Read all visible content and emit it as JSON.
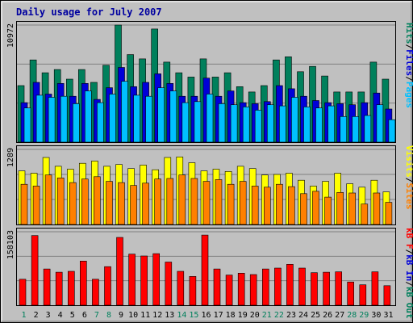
{
  "title": "Daily usage for July 2007",
  "days": [
    "1",
    "2",
    "3",
    "4",
    "5",
    "6",
    "7",
    "8",
    "9",
    "10",
    "11",
    "12",
    "13",
    "14",
    "15",
    "16",
    "17",
    "18",
    "19",
    "20",
    "21",
    "22",
    "23",
    "24",
    "25",
    "26",
    "27",
    "28",
    "29",
    "30",
    "31"
  ],
  "weekend_days": [
    1,
    7,
    8,
    14,
    15,
    21,
    22,
    28,
    29
  ],
  "colors": {
    "hits": "#00805c",
    "files": "#0000d8",
    "pages": "#00c0ff",
    "visits": "#ffff00",
    "sites": "#ff8000",
    "kbin": "#ff0000",
    "weekday_label": "#000000",
    "weekend_label": "#00805c"
  },
  "chart_data": [
    {
      "type": "bar",
      "panel": "top",
      "ymax_label": "10972",
      "ylim": [
        0,
        10972
      ],
      "legend": [
        {
          "label": "Hits",
          "color": "#00805c"
        },
        {
          "label": "/",
          "color": "#000000"
        },
        {
          "label": "Files",
          "color": "#0000d8"
        },
        {
          "label": "/",
          "color": "#000000"
        },
        {
          "label": "Pages",
          "color": "#00c0ff"
        }
      ],
      "categories": [
        "1",
        "2",
        "3",
        "4",
        "5",
        "6",
        "7",
        "8",
        "9",
        "10",
        "11",
        "12",
        "13",
        "14",
        "15",
        "16",
        "17",
        "18",
        "19",
        "20",
        "21",
        "22",
        "23",
        "24",
        "25",
        "26",
        "27",
        "28",
        "29",
        "30",
        "31"
      ],
      "series": [
        {
          "name": "Hits",
          "values": [
            5300,
            7700,
            6500,
            6800,
            5900,
            6800,
            5600,
            7200,
            10972,
            8200,
            7800,
            10600,
            7500,
            6500,
            6100,
            7800,
            6100,
            6500,
            5200,
            4700,
            5300,
            7700,
            8000,
            6600,
            7100,
            6200,
            4700,
            4700,
            4700,
            7500,
            5900
          ]
        },
        {
          "name": "Files",
          "values": [
            3700,
            5600,
            4500,
            5500,
            4300,
            5500,
            4000,
            5100,
            7000,
            5200,
            5600,
            6400,
            5500,
            4300,
            4300,
            6000,
            4300,
            4800,
            3700,
            3600,
            3800,
            5300,
            5000,
            4300,
            3900,
            3700,
            3600,
            3500,
            3700,
            4600,
            3100
          ]
        },
        {
          "name": "Pages",
          "values": [
            3200,
            4400,
            4200,
            4300,
            3600,
            4800,
            3700,
            4500,
            5700,
            4400,
            4300,
            5100,
            4800,
            3700,
            3800,
            4500,
            3600,
            3500,
            3300,
            3000,
            3500,
            3400,
            4200,
            3300,
            3200,
            3400,
            2400,
            2400,
            2500,
            3500,
            2100
          ]
        }
      ]
    },
    {
      "type": "bar",
      "panel": "middle",
      "ymax_label": "1289",
      "ylim": [
        0,
        1289
      ],
      "legend": [
        {
          "label": "Visits",
          "color": "#ffff00"
        },
        {
          "label": "/",
          "color": "#000000"
        },
        {
          "label": "Sites",
          "color": "#ff8000"
        }
      ],
      "categories": [
        "1",
        "2",
        "3",
        "4",
        "5",
        "6",
        "7",
        "8",
        "9",
        "10",
        "11",
        "12",
        "13",
        "14",
        "15",
        "16",
        "17",
        "18",
        "19",
        "20",
        "21",
        "22",
        "23",
        "24",
        "25",
        "26",
        "27",
        "28",
        "29",
        "30",
        "31"
      ],
      "series": [
        {
          "name": "Visits",
          "values": [
            920,
            880,
            1150,
            1000,
            950,
            1050,
            1090,
            1000,
            1030,
            960,
            1020,
            940,
            1150,
            1160,
            1060,
            920,
            950,
            910,
            1000,
            960,
            850,
            860,
            880,
            760,
            660,
            740,
            880,
            700,
            640,
            760,
            560
          ]
        },
        {
          "name": "Sites",
          "values": [
            690,
            660,
            850,
            800,
            720,
            780,
            820,
            740,
            720,
            670,
            710,
            780,
            790,
            850,
            790,
            740,
            770,
            690,
            740,
            660,
            640,
            690,
            650,
            530,
            570,
            470,
            550,
            540,
            350,
            540,
            380
          ]
        }
      ]
    },
    {
      "type": "bar",
      "panel": "bottom",
      "ymax_label": "158103",
      "ylim": [
        0,
        158103
      ],
      "legend": [
        {
          "label": "kB F",
          "color": "#ff0000"
        },
        {
          "label": "/",
          "color": "#000000"
        },
        {
          "label": "kB In",
          "color": "#0000d8"
        },
        {
          "label": "/",
          "color": "#000000"
        },
        {
          "label": "kB Out",
          "color": "#00805c"
        }
      ],
      "categories": [
        "1",
        "2",
        "3",
        "4",
        "5",
        "6",
        "7",
        "8",
        "9",
        "10",
        "11",
        "12",
        "13",
        "14",
        "15",
        "16",
        "17",
        "18",
        "19",
        "20",
        "21",
        "22",
        "23",
        "24",
        "25",
        "26",
        "27",
        "28",
        "29",
        "30",
        "31"
      ],
      "series": [
        {
          "name": "kB F",
          "values": [
            56000,
            150000,
            78000,
            71000,
            73000,
            95000,
            56000,
            83000,
            146000,
            110000,
            106000,
            111000,
            93000,
            73000,
            62000,
            151000,
            78000,
            65000,
            69000,
            66000,
            78000,
            80000,
            88000,
            80000,
            70000,
            71000,
            72000,
            50000,
            44000,
            72000,
            42000
          ]
        }
      ]
    }
  ]
}
